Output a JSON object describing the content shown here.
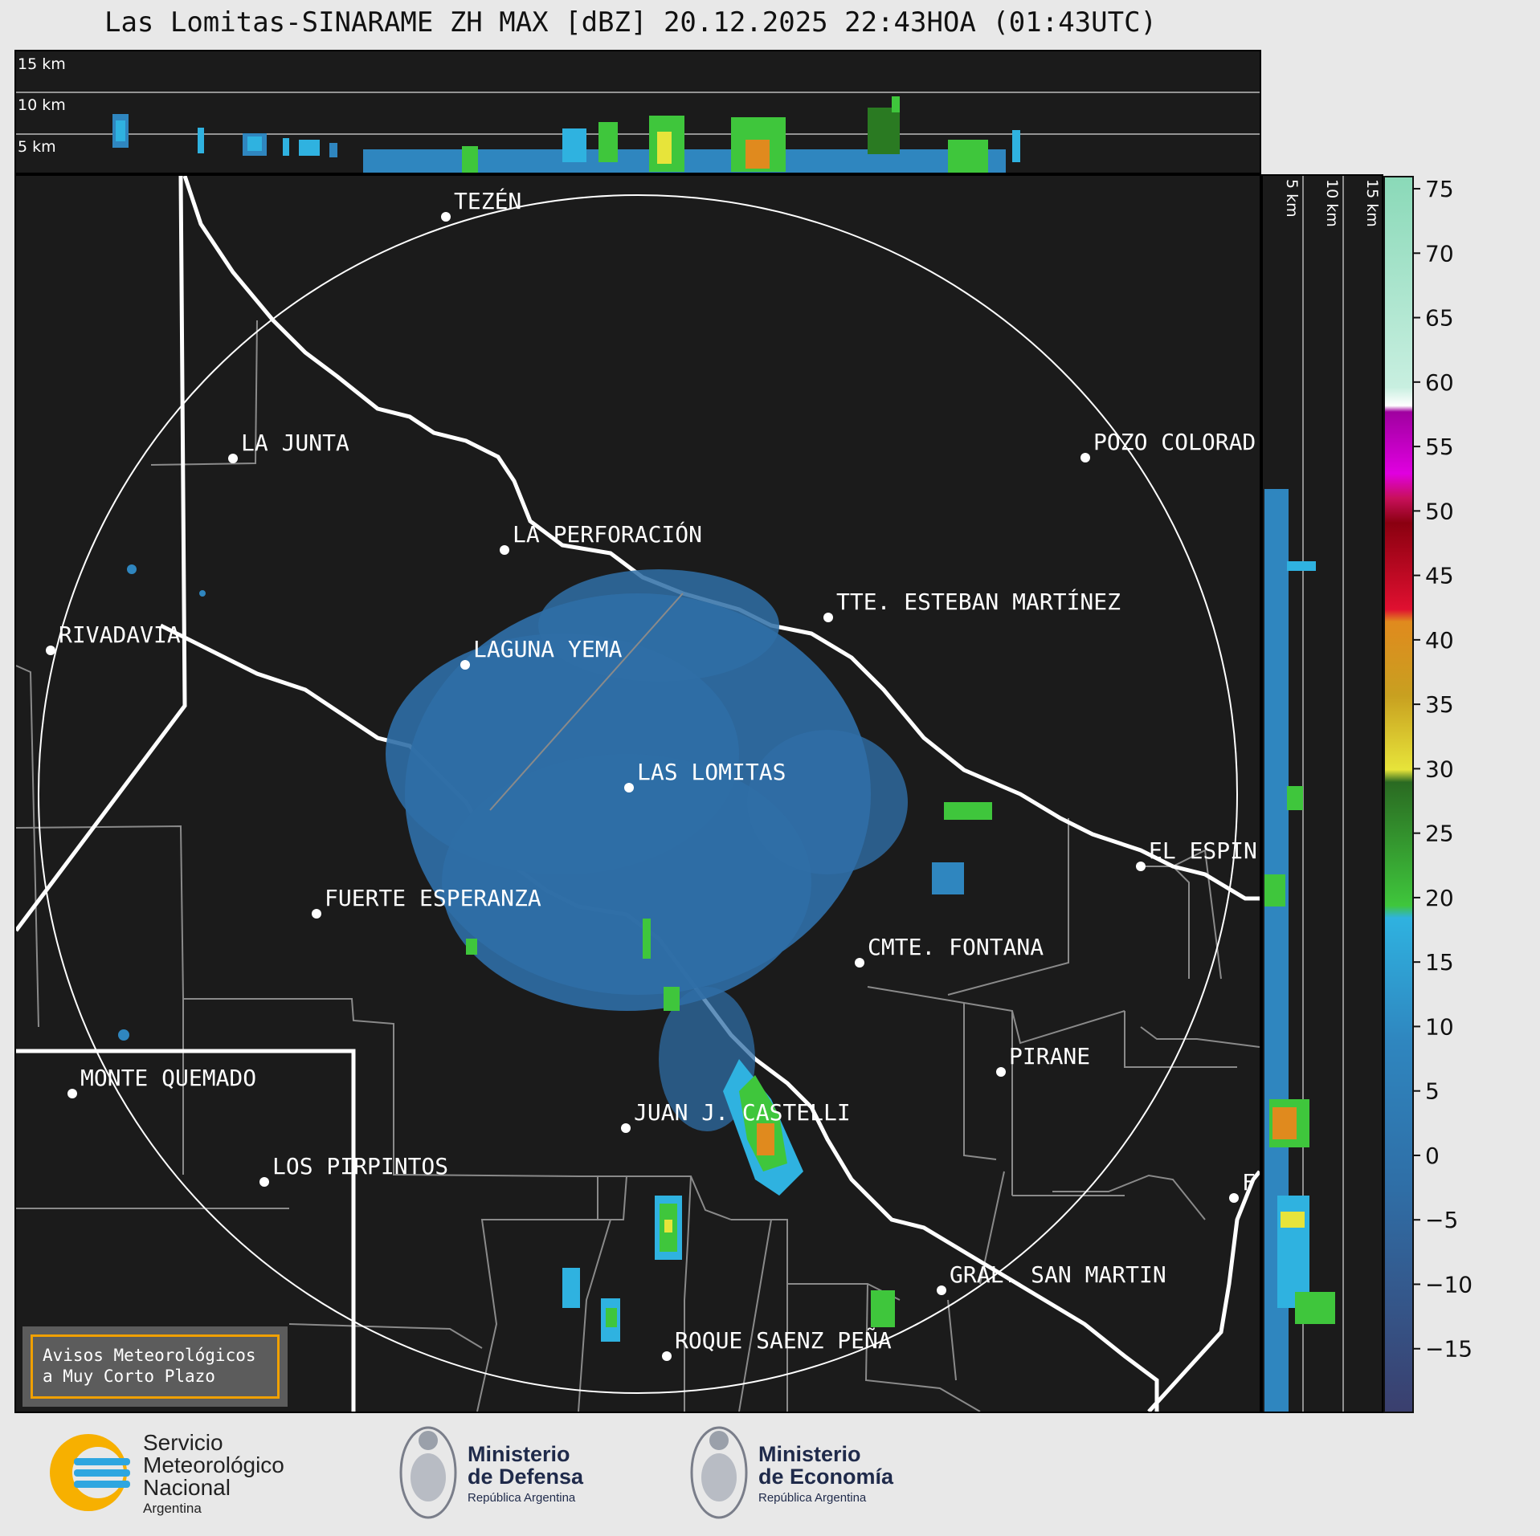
{
  "title": "Las Lomitas-SINARAME ZH MAX [dBZ] 20.12.2025 22:43HOA (01:43UTC)",
  "height_labels": [
    "15 km",
    "10 km",
    "5 km"
  ],
  "side_height_labels": [
    "5 km",
    "10 km",
    "15 km"
  ],
  "cities": [
    {
      "name": "TEZÉN"
    },
    {
      "name": "LA JUNTA"
    },
    {
      "name": "POZO COLORAD"
    },
    {
      "name": "LA PERFORACIÓN"
    },
    {
      "name": "TTE. ESTEBAN MARTÍNEZ"
    },
    {
      "name": "RIVADAVIA"
    },
    {
      "name": "LAGUNA YEMA"
    },
    {
      "name": "LAS LOMITAS"
    },
    {
      "name": "EL ESPIN"
    },
    {
      "name": "FUERTE ESPERANZA"
    },
    {
      "name": "CMTE. FONTANA"
    },
    {
      "name": "PIRANE"
    },
    {
      "name": "MONTE QUEMADO"
    },
    {
      "name": "JUAN J. CASTELLI"
    },
    {
      "name": "LOS PIRPINTOS"
    },
    {
      "name": "GRAL. SAN MARTIN"
    },
    {
      "name": "ROQUE SAENZ PEÑA"
    },
    {
      "name": "F"
    }
  ],
  "colorbar": {
    "unit": "dBZ",
    "ticks": [
      "75",
      "70",
      "65",
      "60",
      "55",
      "50",
      "45",
      "40",
      "35",
      "30",
      "25",
      "20",
      "15",
      "10",
      "5",
      "0",
      "−5",
      "−10",
      "−15"
    ],
    "range": [
      -20,
      76
    ],
    "colors": {
      "low": "#3a3f6e",
      "blue": "#2f86bf",
      "cyan": "#2fb2e0",
      "green": "#3fc63c",
      "darkgreen": "#2a7a22",
      "yellow": "#e7e43a",
      "orange": "#e08a1e",
      "red": "#c8102e",
      "magenta": "#c000c0",
      "white": "#ffffff",
      "mint": "#8ad9b8"
    }
  },
  "avisos": {
    "line1": "Avisos Meteorológicos",
    "line2": "a Muy Corto Plazo"
  },
  "logos": {
    "smn_line1": "Servicio",
    "smn_line2": "Meteorológico",
    "smn_line3": "Nacional",
    "smn_line4": "Argentina",
    "defensa_line1": "Ministerio",
    "defensa_line2": "de Defensa",
    "defensa_line3": "República Argentina",
    "economia_line1": "Ministerio",
    "economia_line2": "de Economía",
    "economia_line3": "República Argentina"
  }
}
